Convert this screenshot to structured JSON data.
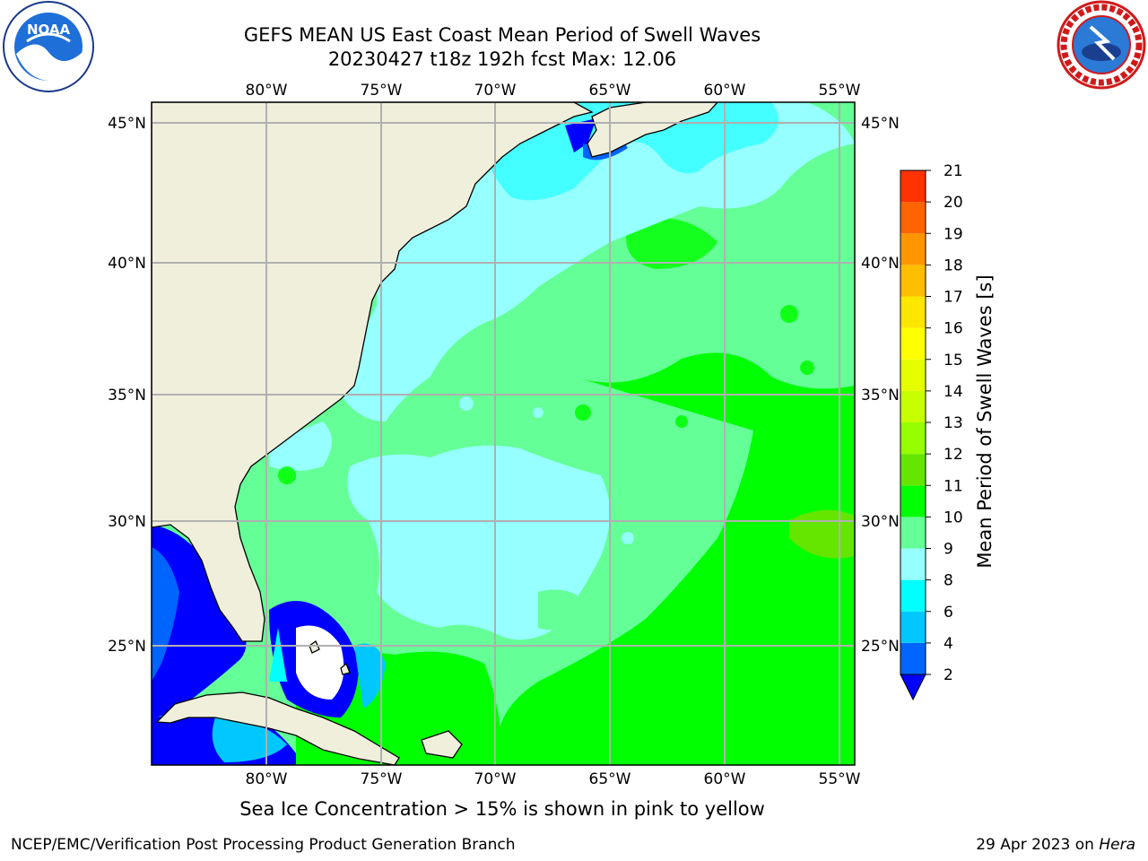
{
  "header": {
    "title_line1": "GEFS MEAN US East Coast Mean Period of Swell Waves",
    "title_line2": "20230427 t18z 192h fcst   Max: 12.06"
  },
  "logos": {
    "left": "noaa-logo",
    "right": "nws-logo",
    "left_text": "NOAA",
    "left_ring_text": "NATIONAL OCEANIC AND ATMOSPHERIC ADMINISTRATION · U.S. DEPARTMENT OF COMMERCE",
    "right_ring_text": "NATIONAL WEATHER SERVICE"
  },
  "map": {
    "lon_range": [
      -85,
      -54.3
    ],
    "lat_range": [
      20.3,
      45.8
    ],
    "lon_ticks": [
      "80°W",
      "75°W",
      "70°W",
      "65°W",
      "60°W",
      "55°W"
    ],
    "lon_tick_values": [
      -80,
      -75,
      -70,
      -65,
      -60,
      -55
    ],
    "lat_ticks": [
      "45°N",
      "40°N",
      "35°N",
      "30°N",
      "25°N"
    ],
    "lat_tick_values": [
      45,
      40,
      35,
      30,
      25
    ],
    "grid": true,
    "colors": {
      "land": "#efefdc",
      "grid": "#b0b0b0",
      "coast": "#000000"
    }
  },
  "colorbar": {
    "label": "Mean Period of Swell Waves [s]",
    "extend": "min",
    "levels": [
      "2",
      "4",
      "6",
      "8",
      "9",
      "10",
      "11",
      "12",
      "13",
      "14",
      "15",
      "16",
      "17",
      "18",
      "19",
      "20",
      "21"
    ],
    "colors": [
      "#0064ff",
      "#00c8ff",
      "#00ffff",
      "#96ffff",
      "#64ff96",
      "#00ff00",
      "#64e600",
      "#96ff00",
      "#c8ff00",
      "#e6ff00",
      "#ffff00",
      "#ffe600",
      "#ffbe00",
      "#ff9600",
      "#ff6400",
      "#ff3200"
    ],
    "under_color": "#0000ff"
  },
  "caption": "Sea Ice Concentration > 15% is shown in pink to yellow",
  "footer": {
    "left": "NCEP/EMC/Verification Post Processing Product Generation Branch",
    "right_date": "29 Apr 2023 on",
    "right_host": "Hera"
  }
}
